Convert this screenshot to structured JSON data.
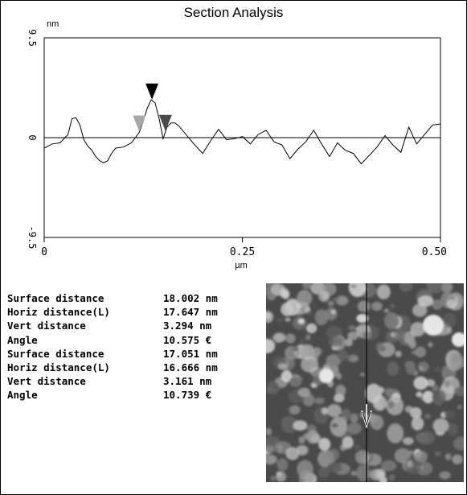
{
  "chart_data": {
    "type": "line",
    "title": "Section Analysis",
    "y_unit": "nm",
    "xlabel": "µm",
    "xlim": [
      0,
      0.5
    ],
    "ylim": [
      -9.5,
      9.5
    ],
    "x_ticks": [
      "0",
      "0.25",
      "0.50"
    ],
    "y_ticks": [
      "9.5",
      "0",
      "-9.5"
    ],
    "series": [
      {
        "x": [
          0,
          0.01,
          0.02,
          0.03,
          0.035,
          0.04,
          0.045,
          0.05,
          0.055,
          0.06,
          0.065,
          0.07,
          0.075,
          0.08,
          0.085,
          0.09,
          0.1,
          0.11,
          0.12,
          0.125,
          0.13,
          0.135,
          0.14,
          0.145,
          0.15,
          0.155,
          0.16,
          0.165,
          0.17,
          0.18,
          0.19,
          0.2,
          0.21,
          0.22,
          0.23,
          0.24,
          0.25,
          0.26,
          0.27,
          0.28,
          0.29,
          0.3,
          0.31,
          0.32,
          0.33,
          0.34,
          0.35,
          0.36,
          0.37,
          0.38,
          0.39,
          0.4,
          0.41,
          0.42,
          0.43,
          0.44,
          0.45,
          0.46,
          0.47,
          0.48,
          0.49,
          0.5
        ],
        "y": [
          -1.0,
          -0.6,
          -0.5,
          0.3,
          1.8,
          1.9,
          1.2,
          -0.2,
          -0.8,
          -1.2,
          -1.8,
          -2.2,
          -2.4,
          -2.2,
          -1.5,
          -1.0,
          -0.9,
          -0.5,
          0.5,
          1.6,
          2.8,
          3.6,
          3.3,
          1.8,
          -0.1,
          1.0,
          1.4,
          1.4,
          1.1,
          0.2,
          -0.7,
          -1.5,
          -0.3,
          0.8,
          -0.2,
          -0.1,
          0.1,
          -0.6,
          0.3,
          0.7,
          -0.4,
          -0.7,
          -2.0,
          -1.1,
          -0.4,
          0.7,
          -0.6,
          -1.8,
          -0.5,
          -1.2,
          -1.5,
          -2.5,
          -1.7,
          -0.9,
          0.2,
          -0.7,
          -1.4,
          1.0,
          -0.6,
          0.3,
          1.2,
          1.3
        ]
      }
    ],
    "markers": [
      {
        "x": 0.12,
        "color": "#a8a8a8"
      },
      {
        "x": 0.136,
        "color": "#000000"
      },
      {
        "x": 0.153,
        "color": "#4a4a4a"
      }
    ]
  },
  "measurements": {
    "labels": [
      "Surface distance",
      "Horiz distance(L)",
      "Vert distance",
      "Angle",
      "Surface distance",
      "Horiz distance(L)",
      "Vert distance",
      "Angle"
    ],
    "values": [
      "18.002 nm",
      "17.647 nm",
      "3.294 nm",
      "10.575 €",
      "17.051 nm",
      "16.666 nm",
      "3.161 nm",
      "10.739 €"
    ]
  }
}
